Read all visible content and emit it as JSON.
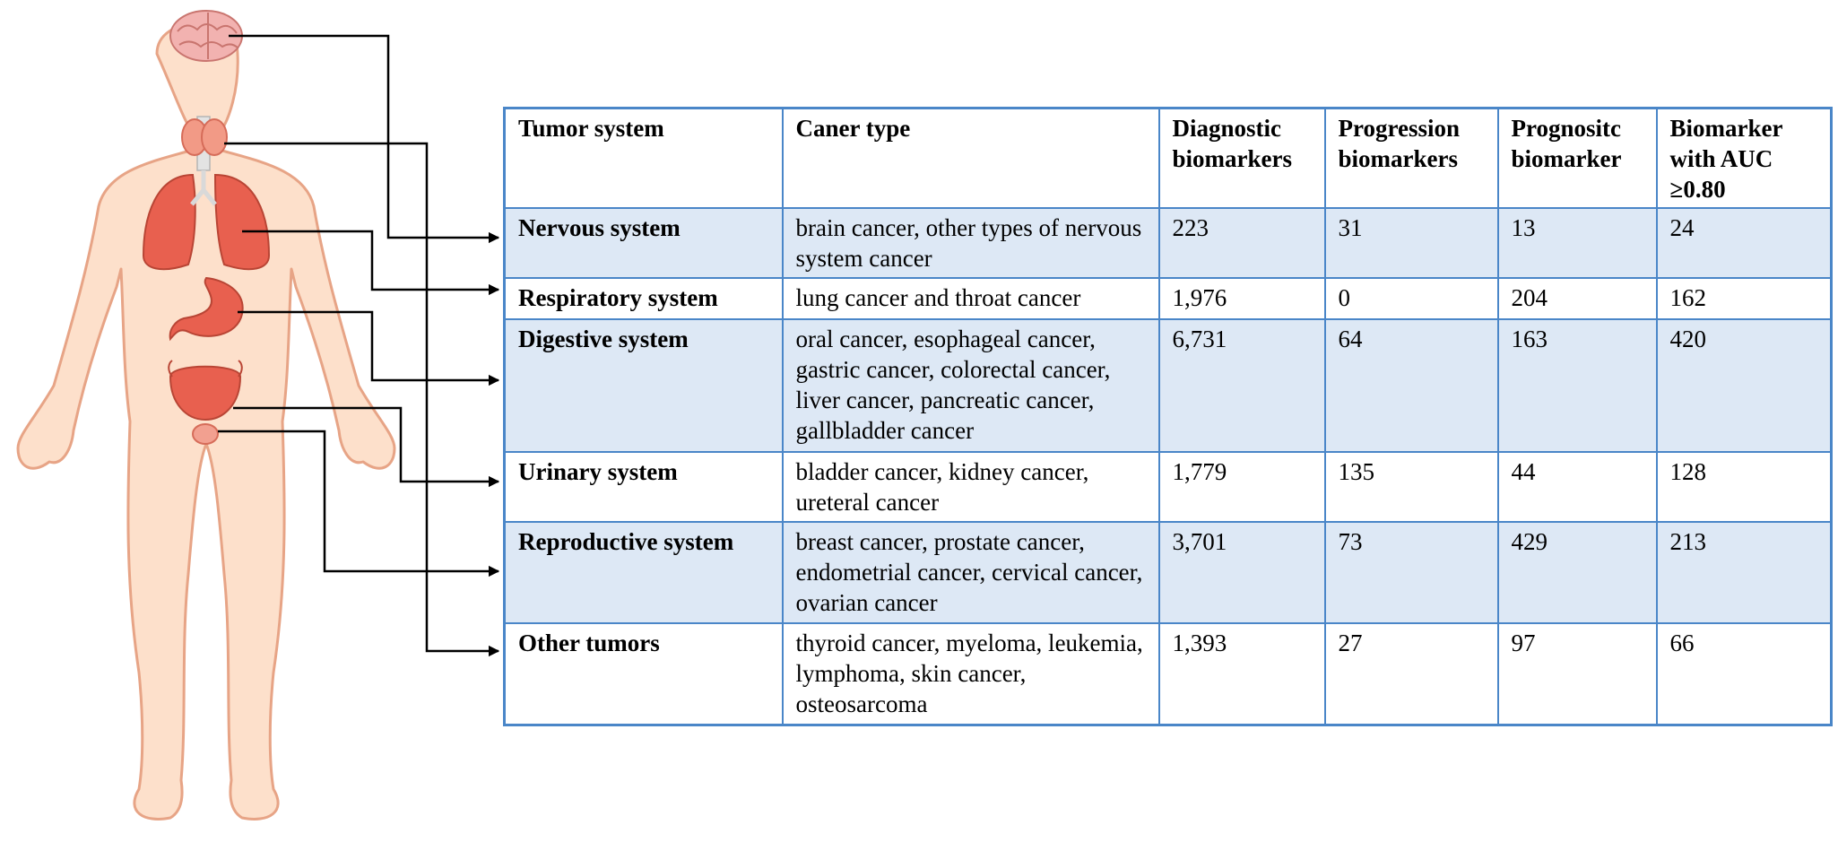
{
  "table": {
    "headers": [
      "Tumor system",
      "Caner type",
      "Diagnostic biomarkers",
      "Progression biomarkers",
      "Prognositc biomarker",
      "Biomarker with AUC ≥0.80"
    ],
    "rows": [
      {
        "system": "Nervous system",
        "types": "brain cancer, other types of nervous system cancer",
        "diagnostic": "223",
        "progression": "31",
        "prognostic": "13",
        "auc": "24"
      },
      {
        "system": "Respiratory system",
        "types": "lung cancer and throat cancer",
        "diagnostic": "1,976",
        "progression": "0",
        "prognostic": "204",
        "auc": "162"
      },
      {
        "system": "Digestive system",
        "types": "oral cancer, esophageal cancer, gastric cancer, colorectal cancer, liver cancer, pancreatic cancer, gallbladder cancer",
        "diagnostic": "6,731",
        "progression": "64",
        "prognostic": "163",
        "auc": "420"
      },
      {
        "system": "Urinary system",
        "types": "bladder cancer, kidney cancer, ureteral cancer",
        "diagnostic": "1,779",
        "progression": "135",
        "prognostic": "44",
        "auc": "128"
      },
      {
        "system": "Reproductive system",
        "types": "breast cancer, prostate cancer, endometrial cancer, cervical cancer, ovarian cancer",
        "diagnostic": "3,701",
        "progression": "73",
        "prognostic": "429",
        "auc": "213"
      },
      {
        "system": "Other tumors",
        "types": "thyroid cancer, myeloma, leukemia, lymphoma, skin cancer, osteosarcoma",
        "diagnostic": "1,393",
        "progression": "27",
        "prognostic": "97",
        "auc": "66"
      }
    ]
  },
  "colors": {
    "border": "#4a86c8",
    "row_shade": "#dde8f5",
    "skin": "#fde0cb",
    "skin_outline": "#e7a486",
    "organ": "#e8604f",
    "brain": "#f2b2b0",
    "arrow": "#000000"
  },
  "icons": {
    "body": "human-body-icon",
    "brain": "brain-icon",
    "thyroid": "thyroid-icon",
    "lungs": "lungs-icon",
    "stomach": "stomach-icon",
    "bladder": "bladder-icon",
    "prostate": "prostate-icon"
  }
}
